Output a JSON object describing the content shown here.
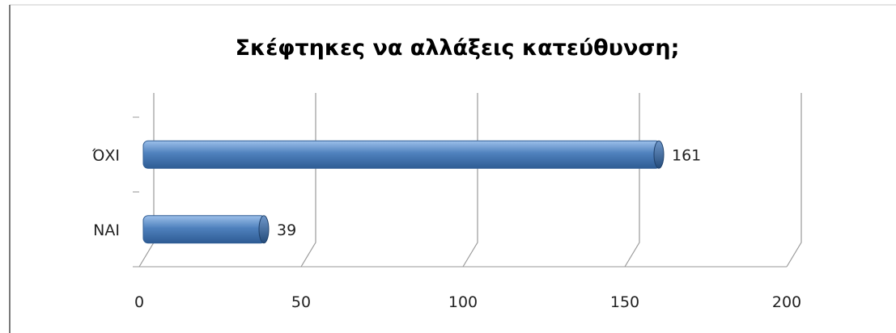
{
  "chart_data": {
    "type": "bar",
    "orientation": "horizontal",
    "title": "Σκέφτηκες να αλλάξεις κατεύθυνση;",
    "categories": [
      "ΌΧΙ",
      "ΝΑΙ"
    ],
    "values": [
      161,
      39
    ],
    "data_labels": [
      "161",
      "39"
    ],
    "xlim": [
      0,
      200
    ],
    "x_ticks": [
      0,
      50,
      100,
      150,
      200
    ],
    "x_tick_labels": [
      "0",
      "50",
      "100",
      "150",
      "200"
    ],
    "grid": true,
    "legend": "none",
    "bar_color": "#4f81bd",
    "bar_color_dark": "#2e5c94",
    "bar_color_light": "#9dc0ea"
  }
}
